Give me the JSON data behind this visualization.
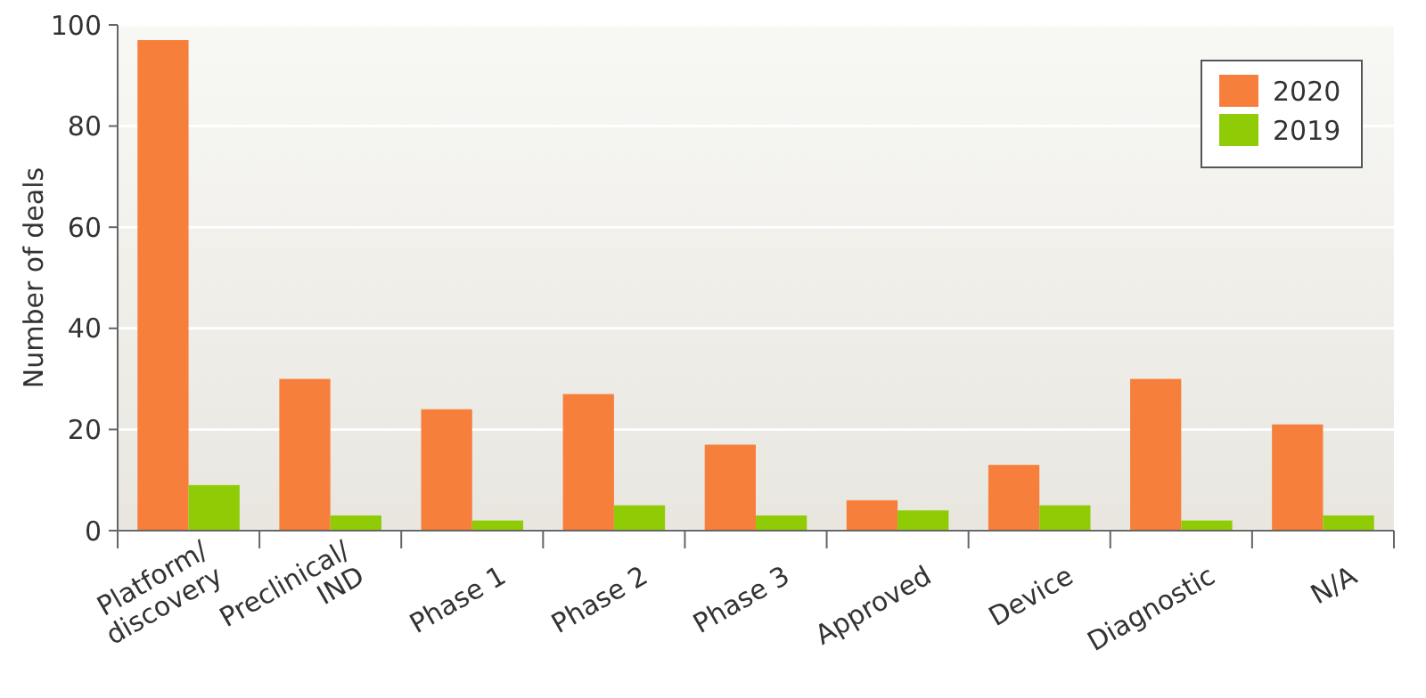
{
  "chart_data": {
    "type": "bar",
    "ylabel": "Number of deals",
    "categories": [
      "Platform/\ndiscovery",
      "Preclinical/\nIND",
      "Phase 1",
      "Phase 2",
      "Phase 3",
      "Approved",
      "Device",
      "Diagnostic",
      "N/A"
    ],
    "series": [
      {
        "name": "2020",
        "color": "#f77f3c",
        "values": [
          97,
          30,
          24,
          27,
          17,
          6,
          13,
          30,
          21
        ]
      },
      {
        "name": "2019",
        "color": "#8fcc06",
        "values": [
          9,
          3,
          2,
          5,
          3,
          4,
          5,
          2,
          3
        ]
      }
    ],
    "ylim": [
      0,
      100
    ],
    "yticks": [
      0,
      20,
      40,
      60,
      80,
      100
    ],
    "grid": "y",
    "legend": "top right"
  }
}
